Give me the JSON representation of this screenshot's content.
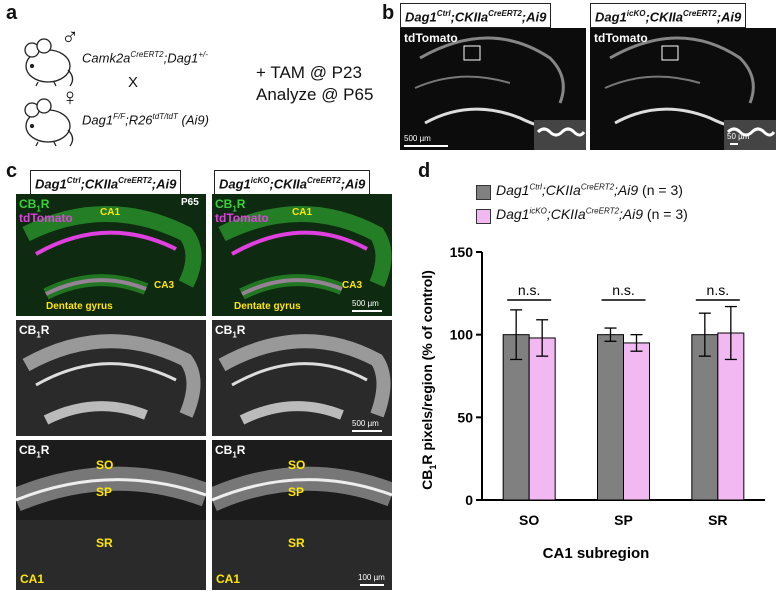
{
  "panels": {
    "a": "a",
    "b": "b",
    "c": "c",
    "d": "d"
  },
  "panel_a": {
    "male_symbol": "♂",
    "female_symbol": "♀",
    "male_gene_1": "Camk2a",
    "male_sup_1": "CreERT2",
    "male_gene_2": ";Dag1",
    "male_sup_2": "+/-",
    "cross": "X",
    "female_gene_1": "Dag1",
    "female_sup_1": "F/F",
    "female_gene_2": ";R26",
    "female_sup_2": "tdT/tdT",
    "female_gene_3": " (Ai9)",
    "treatment_line1": "+ TAM @ P23",
    "treatment_line2": "Analyze @ P65"
  },
  "genotypes": {
    "ctrl": {
      "g1": "Dag1",
      "s1": "Ctrl",
      "g2": ";CKIIa",
      "s2": "CreERT2",
      "g3": ";Ai9"
    },
    "icko": {
      "g1": "Dag1",
      "s1": "icKO",
      "g2": ";CKIIa",
      "s2": "CreERT2",
      "g3": ";Ai9"
    }
  },
  "panel_b": {
    "channel": "tdTomato",
    "scale_large": "500 µm",
    "scale_small": "50 µm"
  },
  "panel_c": {
    "cb1r_main": "CB",
    "cb1r_sub": "1",
    "cb1r_tail": "R",
    "tdtomato": "tdTomato",
    "age": "P65",
    "ca1": "CA1",
    "ca3": "CA3",
    "dentate": "Dentate gyrus",
    "so": "SO",
    "sp": "SP",
    "sr": "SR",
    "scale_500": "500 µm",
    "scale_100": "100 µm"
  },
  "colors": {
    "ctrl_bar": "#808080",
    "icko_bar": "#f2b8f2",
    "green": "#39d23a",
    "magenta": "#e040e0",
    "yellow": "#ffe600"
  },
  "chart_data": {
    "type": "bar",
    "categories": [
      "SO",
      "SP",
      "SR"
    ],
    "series": [
      {
        "name": "Dag1Ctrl;CKIIaCreERT2;Ai9 (n = 3)",
        "values": [
          100,
          100,
          100
        ],
        "errors": [
          15,
          4,
          13
        ],
        "color": "#808080"
      },
      {
        "name": "Dag1icKO;CKIIaCreERT2;Ai9 (n = 3)",
        "values": [
          98,
          95,
          101
        ],
        "errors": [
          11,
          5,
          16
        ],
        "color": "#f2b8f2"
      }
    ],
    "significance": [
      "n.s.",
      "n.s.",
      "n.s."
    ],
    "ylim": [
      0,
      150
    ],
    "yticks": [
      0,
      50,
      100,
      150
    ],
    "ylabel_parts": {
      "a": "CB",
      "sub": "1",
      "b": "R pixels/region (% of control)"
    },
    "xlabel": "CA1 subregion",
    "legend": {
      "n_text": " (n = 3)"
    }
  }
}
